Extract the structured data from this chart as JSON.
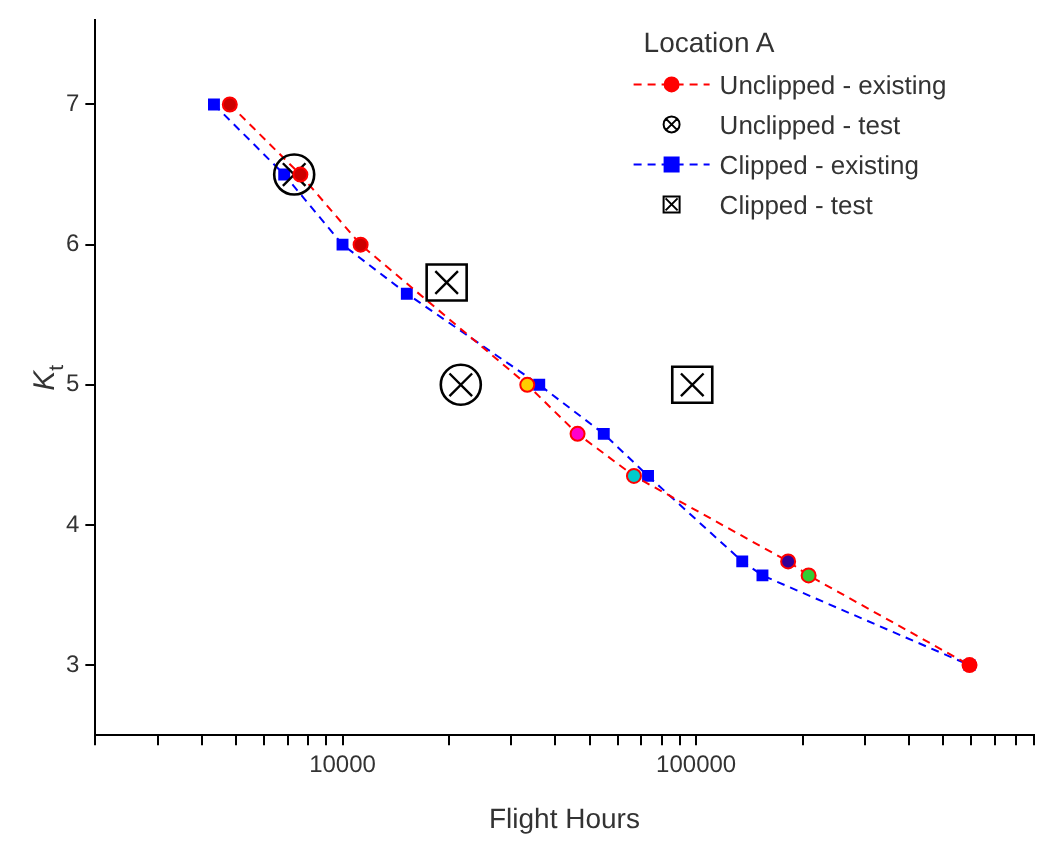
{
  "chart_data": {
    "type": "line",
    "xlabel": "Flight Hours",
    "ylabel": "K$_{t}$",
    "legend_title": "Location A",
    "legend": "top right",
    "log": "x",
    "grid": false,
    "xlim": [
      2000,
      900000
    ],
    "ylim": [
      2.5,
      7.6
    ],
    "xticks": [
      {
        "value": 2000,
        "label": null
      },
      {
        "value": 3000,
        "label": null
      },
      {
        "value": 4000,
        "label": null
      },
      {
        "value": 5000,
        "label": null
      },
      {
        "value": 6000,
        "label": null
      },
      {
        "value": 7000,
        "label": null
      },
      {
        "value": 8000,
        "label": null
      },
      {
        "value": 9000,
        "label": null
      },
      10000,
      {
        "value": 20000,
        "label": null
      },
      {
        "value": 30000,
        "label": null
      },
      {
        "value": 40000,
        "label": null
      },
      {
        "value": 50000,
        "label": null
      },
      {
        "value": 60000,
        "label": null
      },
      {
        "value": 70000,
        "label": null
      },
      {
        "value": 80000,
        "label": null
      },
      {
        "value": 90000,
        "label": null
      },
      100000,
      {
        "value": 200000,
        "label": null
      },
      {
        "value": 300000,
        "label": null
      },
      {
        "value": 400000,
        "label": null
      },
      {
        "value": 500000,
        "label": null
      },
      {
        "value": 600000,
        "label": null
      },
      {
        "value": 700000,
        "label": null
      },
      {
        "value": 800000,
        "label": null
      },
      {
        "value": 900000,
        "label": null
      }
    ],
    "yticks": [
      3,
      4,
      5,
      6,
      7
    ],
    "series": [
      {
        "name": "Unclipped - existing",
        "type": "line",
        "marker": "circle",
        "line_style": "dashed",
        "color": "#ff0000",
        "colors": [
          "#cc0000",
          "#cc0000",
          "#cc0000",
          "#ffcc00",
          "#ff00cc",
          "#00cccc",
          "#330099",
          "#33cc33",
          "#ff0000"
        ],
        "x": [
          4800,
          7600,
          11250,
          33300,
          46200,
          66700,
          182000,
          208000,
          593000
        ],
        "values": [
          7.0,
          6.5,
          6.0,
          5.0,
          4.65,
          4.35,
          3.74,
          3.64,
          3.0
        ]
      },
      {
        "name": "Unclipped - test",
        "type": "scatter",
        "marker": "circle",
        "color": "#000000",
        "x": [
          7300,
          21600
        ],
        "values": [
          6.5,
          5.0
        ]
      },
      {
        "name": "Clipped - existing",
        "type": "line",
        "marker": "square",
        "line_style": "dashed",
        "color": "#0000ff",
        "x": [
          4330,
          6840,
          10000,
          15200,
          36000,
          54800,
          73100,
          135000,
          154000,
          593000
        ],
        "values": [
          7.0,
          6.5,
          6.0,
          5.65,
          5.0,
          4.65,
          4.35,
          3.74,
          3.64,
          3.0
        ]
      },
      {
        "name": "Clipped - test",
        "type": "scatter",
        "marker": "square",
        "color": "#000000",
        "x": [
          19700,
          97500
        ],
        "values": [
          5.73,
          5.0
        ]
      }
    ]
  }
}
